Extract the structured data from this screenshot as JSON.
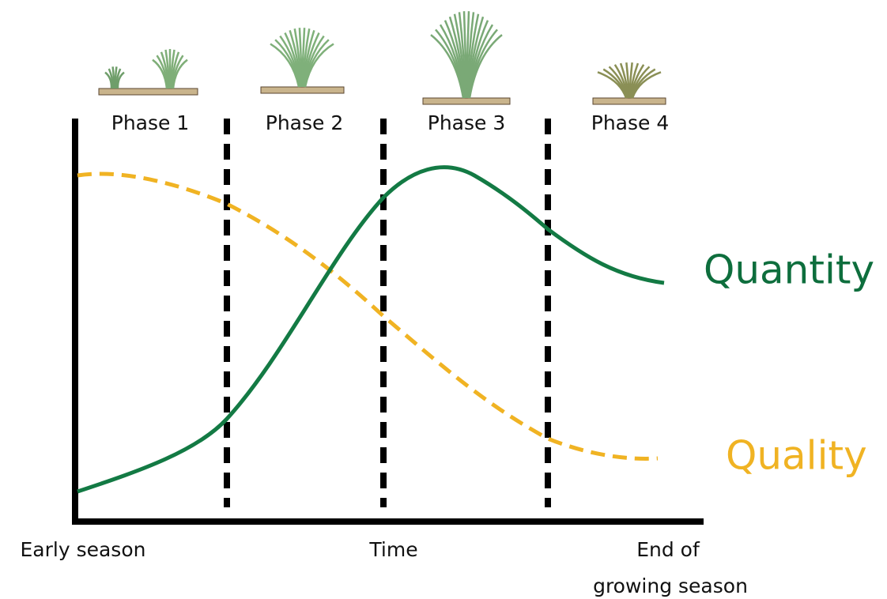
{
  "phases": [
    {
      "label": "Phase 1"
    },
    {
      "label": "Phase 2"
    },
    {
      "label": "Phase 3"
    },
    {
      "label": "Phase 4"
    }
  ],
  "curves": [
    {
      "label": "Quantity"
    },
    {
      "label": "Quality"
    }
  ],
  "x_axis": {
    "start_label": "Early season",
    "label": "Time",
    "end_label": [
      "End of",
      "growing season"
    ]
  }
}
